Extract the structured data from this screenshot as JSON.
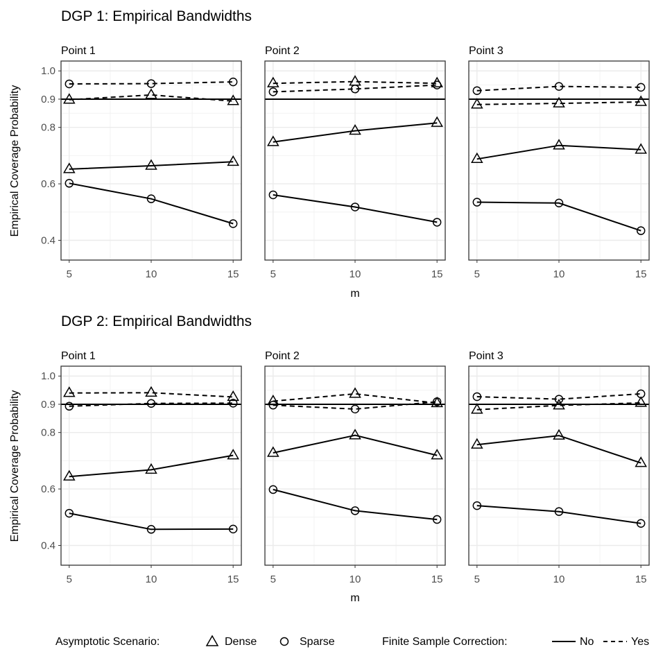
{
  "chart_data": {
    "type": "line",
    "shared": {
      "x": [
        5,
        10,
        15
      ],
      "x_ticks": [
        "5",
        "10",
        "15"
      ],
      "y_ticks": [
        0.4,
        0.6,
        0.8,
        0.9,
        1.0
      ],
      "y_tick_labels": [
        "0.4",
        "0.6",
        "0.8",
        "0.9",
        "1.0"
      ],
      "ylim": [
        0.33,
        1.035
      ],
      "xlim": [
        4.5,
        15.5
      ],
      "reference_line": 0.9,
      "xlabel": "m",
      "ylabel": "Empirical Coverage Probability"
    },
    "legend": {
      "scenario_title": "Asymptotic Scenario:",
      "scenario_items": [
        {
          "shape": "triangle",
          "label": "Dense"
        },
        {
          "shape": "circle",
          "label": "Sparse"
        }
      ],
      "correction_title": "Finite Sample Correction:",
      "correction_items": [
        {
          "linetype": "solid",
          "label": "No"
        },
        {
          "linetype": "dashed",
          "label": "Yes"
        }
      ]
    },
    "charts": [
      {
        "title": "DGP 1: Empirical Bandwidths",
        "panels": [
          {
            "label": "Point 1",
            "series": [
              {
                "name": "Dense No",
                "shape": "triangle",
                "linetype": "solid",
                "values": [
                  0.652,
                  0.664,
                  0.678
                ]
              },
              {
                "name": "Sparse No",
                "shape": "circle",
                "linetype": "solid",
                "values": [
                  0.602,
                  0.547,
                  0.459
                ]
              },
              {
                "name": "Dense Yes",
                "shape": "triangle",
                "linetype": "dashed",
                "values": [
                  0.898,
                  0.915,
                  0.893
                ]
              },
              {
                "name": "Sparse Yes",
                "shape": "circle",
                "linetype": "dashed",
                "values": [
                  0.954,
                  0.955,
                  0.961
                ]
              }
            ]
          },
          {
            "label": "Point 2",
            "series": [
              {
                "name": "Dense No",
                "shape": "triangle",
                "linetype": "solid",
                "values": [
                  0.748,
                  0.788,
                  0.816
                ]
              },
              {
                "name": "Sparse No",
                "shape": "circle",
                "linetype": "solid",
                "values": [
                  0.561,
                  0.518,
                  0.464
                ]
              },
              {
                "name": "Dense Yes",
                "shape": "triangle",
                "linetype": "dashed",
                "values": [
                  0.956,
                  0.962,
                  0.956
                ]
              },
              {
                "name": "Sparse Yes",
                "shape": "circle",
                "linetype": "dashed",
                "values": [
                  0.926,
                  0.936,
                  0.95
                ]
              }
            ]
          },
          {
            "label": "Point 3",
            "series": [
              {
                "name": "Dense No",
                "shape": "triangle",
                "linetype": "solid",
                "values": [
                  0.688,
                  0.736,
                  0.721
                ]
              },
              {
                "name": "Sparse No",
                "shape": "circle",
                "linetype": "solid",
                "values": [
                  0.535,
                  0.532,
                  0.434
                ]
              },
              {
                "name": "Dense Yes",
                "shape": "triangle",
                "linetype": "dashed",
                "values": [
                  0.881,
                  0.885,
                  0.89
                ]
              },
              {
                "name": "Sparse Yes",
                "shape": "circle",
                "linetype": "dashed",
                "values": [
                  0.93,
                  0.945,
                  0.942
                ]
              }
            ]
          }
        ]
      },
      {
        "title": "DGP 2: Empirical Bandwidths",
        "panels": [
          {
            "label": "Point 1",
            "series": [
              {
                "name": "Dense No",
                "shape": "triangle",
                "linetype": "solid",
                "values": [
                  0.644,
                  0.668,
                  0.719
                ]
              },
              {
                "name": "Sparse No",
                "shape": "circle",
                "linetype": "solid",
                "values": [
                  0.514,
                  0.457,
                  0.458
                ]
              },
              {
                "name": "Dense Yes",
                "shape": "triangle",
                "linetype": "dashed",
                "values": [
                  0.94,
                  0.941,
                  0.926
                ]
              },
              {
                "name": "Sparse Yes",
                "shape": "circle",
                "linetype": "dashed",
                "values": [
                  0.893,
                  0.903,
                  0.904
                ]
              }
            ]
          },
          {
            "label": "Point 2",
            "series": [
              {
                "name": "Dense No",
                "shape": "triangle",
                "linetype": "solid",
                "values": [
                  0.728,
                  0.79,
                  0.719
                ]
              },
              {
                "name": "Sparse No",
                "shape": "circle",
                "linetype": "solid",
                "values": [
                  0.598,
                  0.523,
                  0.492
                ]
              },
              {
                "name": "Dense Yes",
                "shape": "triangle",
                "linetype": "dashed",
                "values": [
                  0.911,
                  0.937,
                  0.904
                ]
              },
              {
                "name": "Sparse Yes",
                "shape": "circle",
                "linetype": "dashed",
                "values": [
                  0.897,
                  0.883,
                  0.909
                ]
              }
            ]
          },
          {
            "label": "Point 3",
            "series": [
              {
                "name": "Dense No",
                "shape": "triangle",
                "linetype": "solid",
                "values": [
                  0.757,
                  0.789,
                  0.692
                ]
              },
              {
                "name": "Sparse No",
                "shape": "circle",
                "linetype": "solid",
                "values": [
                  0.541,
                  0.52,
                  0.478
                ]
              },
              {
                "name": "Dense Yes",
                "shape": "triangle",
                "linetype": "dashed",
                "values": [
                  0.881,
                  0.896,
                  0.905
                ]
              },
              {
                "name": "Sparse Yes",
                "shape": "circle",
                "linetype": "dashed",
                "values": [
                  0.927,
                  0.918,
                  0.937
                ]
              }
            ]
          }
        ]
      }
    ]
  }
}
